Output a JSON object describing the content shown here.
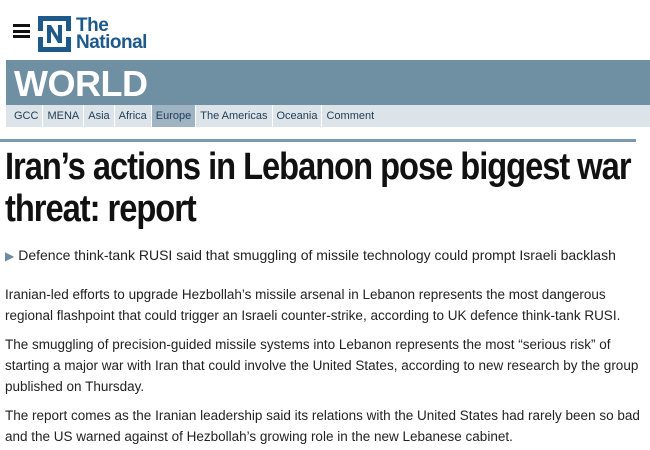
{
  "header": {
    "logo_line1": "The",
    "logo_line2": "National",
    "brand_color": "#1d5a8a"
  },
  "section": {
    "title": "WORLD",
    "band_color": "#6f8fa3"
  },
  "subnav": {
    "items": [
      "GCC",
      "MENA",
      "Asia",
      "Africa",
      "Europe",
      "The Americas",
      "Oceania",
      "Comment"
    ],
    "active": "Europe"
  },
  "article": {
    "headline": "Iran’s actions in Lebanon pose biggest war threat: report",
    "standfirst_arrow": "▶",
    "standfirst": "Defence think-tank RUSI said that smuggling of missile technology could prompt Israeli backlash",
    "paragraphs": [
      "Iranian-led efforts to upgrade Hezbollah’s missile arsenal in Lebanon represents the most dangerous regional flashpoint that could trigger an Israeli counter-strike, according to UK defence think-tank RUSI.",
      "The smuggling of precision-guided missile systems into Lebanon represents the most “serious risk” of starting a major war with Iran that could involve the United States, according to new research by the group published on Thursday.",
      "The report comes as the Iranian leadership said its relations with the United States had rarely been so bad and the US warned against of Hezbollah’s growing role in the new Lebanese cabinet."
    ]
  }
}
